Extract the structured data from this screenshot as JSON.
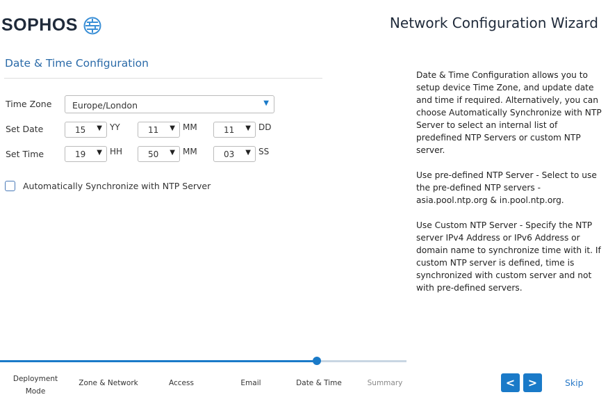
{
  "header": {
    "brand": "SOPHOS",
    "title": "Network Configuration Wizard"
  },
  "section": {
    "title": "Date & Time Configuration"
  },
  "form": {
    "time_zone_label": "Time Zone",
    "time_zone_value": "Europe/London",
    "set_date_label": "Set Date",
    "year": "15",
    "year_unit": "YY",
    "month": "11",
    "month_unit": "MM",
    "day": "11",
    "day_unit": "DD",
    "set_time_label": "Set Time",
    "hour": "19",
    "hour_unit": "HH",
    "minute": "50",
    "minute_unit": "MM",
    "second": "03",
    "second_unit": "SS",
    "ntp_label": "Automatically Synchronize with NTP Server",
    "ntp_checked": false
  },
  "help": [
    "Date & Time Configuration allows you to setup device Time Zone, and update date and time if required. Alternatively, you can choose Automatically Synchronize with NTP Server to select an internal list of predefined NTP Servers or custom NTP server.",
    "Use pre-defined NTP Server - Select to use the pre-defined NTP servers - asia.pool.ntp.org & in.pool.ntp.org.",
    "Use Custom NTP Server - Specify the NTP server IPv4 Address or IPv6 Address or domain name to synchronize time with it. If custom NTP server is defined, time is synchronized with custom server and not with pre-defined servers."
  ],
  "progress": {
    "percent": 78,
    "steps": [
      "Deployment Mode",
      "Zone & Network",
      "Access",
      "Email",
      "Date & Time",
      "Summary"
    ],
    "current_step": "Date & Time"
  },
  "nav": {
    "prev": "<",
    "next": ">",
    "skip": "Skip"
  },
  "colors": {
    "accent": "#1a7ac8",
    "logo": "#1f2a3a"
  }
}
